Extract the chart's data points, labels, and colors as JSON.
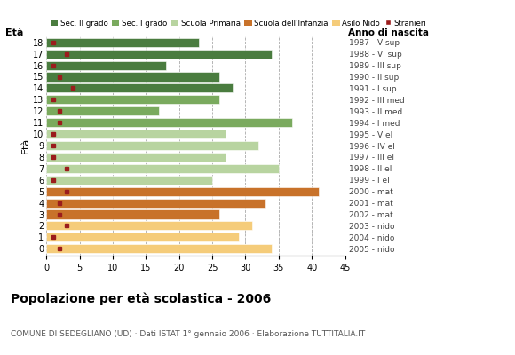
{
  "ages": [
    18,
    17,
    16,
    15,
    14,
    13,
    12,
    11,
    10,
    9,
    8,
    7,
    6,
    5,
    4,
    3,
    2,
    1,
    0
  ],
  "bar_values": [
    23,
    34,
    18,
    26,
    28,
    26,
    17,
    37,
    27,
    32,
    27,
    35,
    25,
    41,
    33,
    26,
    31,
    29,
    34
  ],
  "stranieri": [
    1,
    3,
    1,
    2,
    4,
    1,
    2,
    2,
    1,
    1,
    1,
    3,
    1,
    3,
    2,
    2,
    3,
    1,
    2
  ],
  "bar_colors": [
    "#4a7c3f",
    "#4a7c3f",
    "#4a7c3f",
    "#4a7c3f",
    "#4a7c3f",
    "#7aaa5e",
    "#7aaa5e",
    "#7aaa5e",
    "#b8d4a0",
    "#b8d4a0",
    "#b8d4a0",
    "#b8d4a0",
    "#b8d4a0",
    "#c8722a",
    "#c8722a",
    "#c8722a",
    "#f5cc7a",
    "#f5cc7a",
    "#f5cc7a"
  ],
  "right_labels": [
    "1987 - V sup",
    "1988 - VI sup",
    "1989 - III sup",
    "1990 - II sup",
    "1991 - I sup",
    "1992 - III med",
    "1993 - II med",
    "1994 - I med",
    "1995 - V el",
    "1996 - IV el",
    "1997 - III el",
    "1998 - II el",
    "1999 - I el",
    "2000 - mat",
    "2001 - mat",
    "2002 - mat",
    "2003 - nido",
    "2004 - nido",
    "2005 - nido"
  ],
  "legend_labels": [
    "Sec. II grado",
    "Sec. I grado",
    "Scuola Primaria",
    "Scuola dell'Infanzia",
    "Asilo Nido",
    "Stranieri"
  ],
  "legend_colors": [
    "#4a7c3f",
    "#7aaa5e",
    "#b8d4a0",
    "#c8722a",
    "#f5cc7a",
    "#9b1c1c"
  ],
  "title": "Popolazione per età scolastica - 2006",
  "subtitle": "COMUNE DI SEDEGLIANO (UD) · Dati ISTAT 1° gennaio 2006 · Elaborazione TUTTITALIA.IT",
  "ylabel_left": "Età",
  "ylabel_right": "Anno di nascita",
  "xlim": [
    0,
    45
  ],
  "xticks": [
    0,
    5,
    10,
    15,
    20,
    25,
    30,
    35,
    40,
    45
  ],
  "stranieri_color": "#9b1c1c",
  "background_color": "#ffffff"
}
